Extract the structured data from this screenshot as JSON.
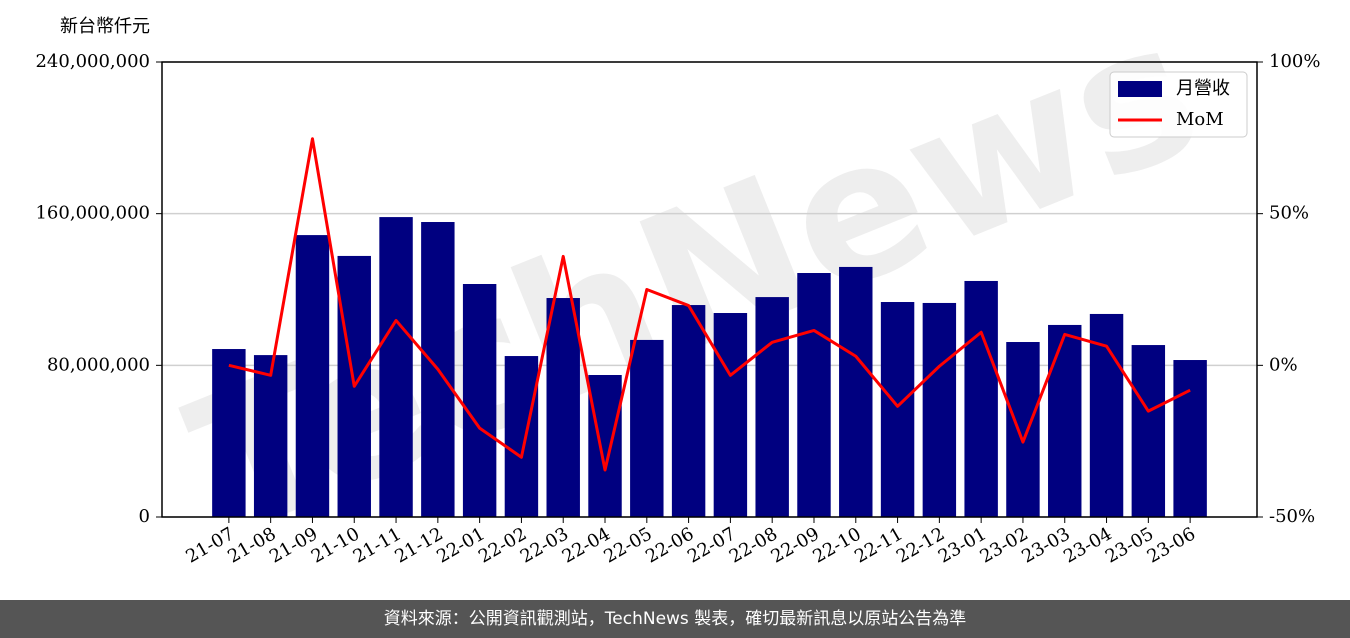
{
  "chart_data": {
    "type": "bar",
    "y_label": "新台幣仟元",
    "watermark": "TechNews",
    "footer": "資料來源：公開資訊觀測站，TechNews 製表，確切最新訊息以原站公告為準",
    "categories": [
      "21-07",
      "21-08",
      "21-09",
      "21-10",
      "21-11",
      "21-12",
      "22-01",
      "22-02",
      "22-03",
      "22-04",
      "22-05",
      "22-06",
      "22-07",
      "22-08",
      "22-09",
      "22-10",
      "22-11",
      "22-12",
      "23-01",
      "23-02",
      "23-03",
      "23-04",
      "23-05",
      "23-06"
    ],
    "series": [
      {
        "name": "月營收",
        "type": "bar",
        "color": "#000080",
        "values": [
          88600000,
          85400000,
          148700000,
          137700000,
          158200000,
          155600000,
          122900000,
          84900000,
          115500000,
          74900000,
          93400000,
          111800000,
          107600000,
          116000000,
          128700000,
          131900000,
          113400000,
          112900000,
          124500000,
          92300000,
          101300000,
          107100000,
          90700000,
          82800000
        ]
      },
      {
        "name": "MoM",
        "type": "line",
        "axis": "y2",
        "color": "#ff0000",
        "values": [
          0,
          -3.3,
          74.7,
          -6.9,
          14.8,
          -1.3,
          -20.7,
          -30.3,
          35.9,
          -34.5,
          25.0,
          19.7,
          -3.3,
          7.6,
          11.5,
          3.0,
          -13.5,
          -0.3,
          10.9,
          -25.3,
          10.2,
          6.3,
          -15.1,
          -8.2
        ]
      }
    ],
    "ylim": [
      0,
      240000000
    ],
    "yticks": [
      0,
      {
        "value": 80000000,
        "label": "80,000,000"
      },
      {
        "value": 160000000,
        "label": "160,000,000"
      },
      {
        "value": 240000000,
        "label": "240,000,000"
      }
    ],
    "y2lim": [
      -50,
      100
    ],
    "y2ticks": [
      {
        "value": -50,
        "label": "-50%"
      },
      {
        "value": 0,
        "label": "0%"
      },
      {
        "value": 50,
        "label": "50%"
      },
      {
        "value": 100,
        "label": "100%"
      }
    ],
    "grid": true,
    "legend": "upper right"
  }
}
